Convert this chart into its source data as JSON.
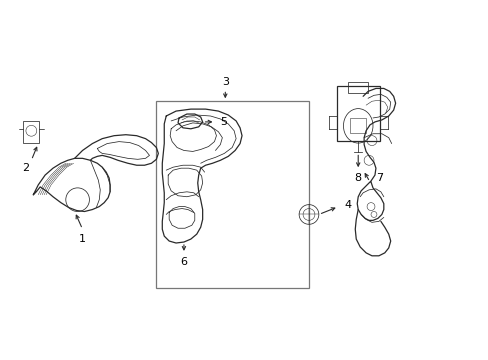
{
  "background_color": "#ffffff",
  "line_color": "#2a2a2a",
  "fig_width": 4.89,
  "fig_height": 3.6,
  "dpi": 100,
  "stroke_width": 0.9,
  "thin_stroke": 0.55
}
